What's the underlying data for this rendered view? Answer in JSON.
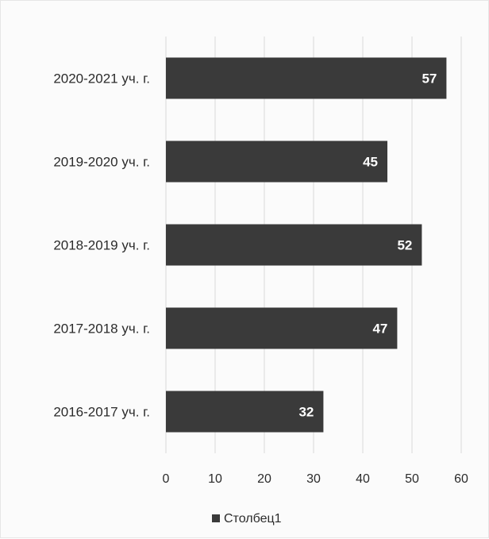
{
  "chart_data": {
    "type": "bar",
    "orientation": "horizontal",
    "categories": [
      "2020-2021 уч. г.",
      "2019-2020 уч. г.",
      "2018-2019 уч. г.",
      "2017-2018 уч. г.",
      "2016-2017 уч. г."
    ],
    "series": [
      {
        "name": "Столбец1",
        "values": [
          57,
          45,
          52,
          47,
          32
        ]
      }
    ],
    "xlim": [
      0,
      60
    ],
    "xticks": [
      0,
      10,
      20,
      30,
      40,
      50,
      60
    ],
    "grid": true,
    "legend": "bottom",
    "colors": {
      "bar": "#3a3a3a",
      "grid": "#d9d9d9",
      "label": "#ffffff"
    }
  }
}
